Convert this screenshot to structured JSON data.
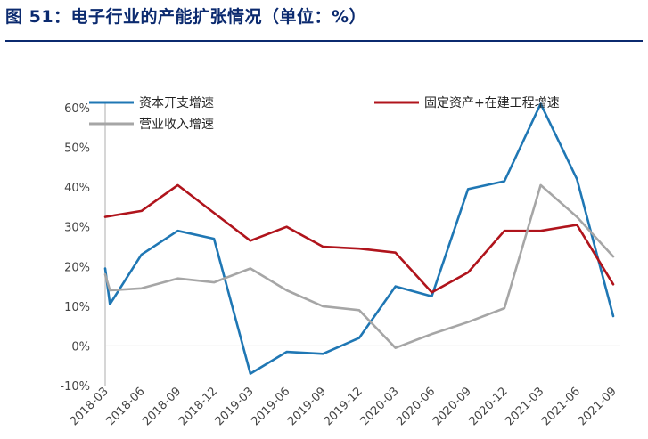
{
  "title": "图 51：电子行业的产能扩张情况（单位：%）",
  "chart_data": {
    "type": "line",
    "categories": [
      "2018-03",
      "2018-06",
      "2018-09",
      "2018-12",
      "2019-03",
      "2019-06",
      "2019-09",
      "2019-12",
      "2020-03",
      "2020-06",
      "2020-09",
      "2020-12",
      "2021-03",
      "2021-06",
      "2021-09"
    ],
    "ylim": [
      -10,
      60
    ],
    "yticks": [
      "-10%",
      "0%",
      "10%",
      "20%",
      "30%",
      "40%",
      "50%",
      "60%"
    ],
    "ytick_values": [
      -10,
      0,
      10,
      20,
      30,
      40,
      50,
      60
    ],
    "legend_position": "top",
    "series": [
      {
        "name": "资本开支增速",
        "color": "#1f77b4",
        "points": [
          [
            0,
            19.5
          ],
          [
            0.13,
            10.5
          ],
          [
            1,
            23
          ],
          [
            2,
            29
          ],
          [
            3,
            27
          ],
          [
            4,
            -7
          ],
          [
            5,
            -1.5
          ],
          [
            6,
            -2
          ],
          [
            7,
            2
          ],
          [
            8,
            15
          ],
          [
            9,
            12.5
          ],
          [
            10,
            39.5
          ],
          [
            11,
            41.5
          ],
          [
            12,
            61
          ],
          [
            13,
            42
          ],
          [
            14,
            7.5
          ]
        ]
      },
      {
        "name": "固定资产+在建工程增速",
        "color": "#b0141c",
        "points": [
          [
            0,
            32.5
          ],
          [
            1,
            34
          ],
          [
            2,
            40.5
          ],
          [
            3,
            33.5
          ],
          [
            4,
            26.5
          ],
          [
            5,
            30
          ],
          [
            6,
            25
          ],
          [
            7,
            24.5
          ],
          [
            8,
            23.5
          ],
          [
            9,
            13.5
          ],
          [
            10,
            18.5
          ],
          [
            11,
            29
          ],
          [
            12,
            29
          ],
          [
            13,
            30.5
          ],
          [
            14,
            15.5
          ]
        ]
      },
      {
        "name": "营业收入增速",
        "color": "#a6a6a6",
        "points": [
          [
            0,
            18
          ],
          [
            0.13,
            14
          ],
          [
            1,
            14.5
          ],
          [
            2,
            17
          ],
          [
            3,
            16
          ],
          [
            4,
            19.5
          ],
          [
            5,
            14
          ],
          [
            6,
            10
          ],
          [
            7,
            9
          ],
          [
            8,
            -0.5
          ],
          [
            9,
            3
          ],
          [
            10,
            6
          ],
          [
            11,
            9.5
          ],
          [
            12,
            40.5
          ],
          [
            13,
            32.5
          ],
          [
            14,
            22.5
          ]
        ]
      }
    ]
  }
}
